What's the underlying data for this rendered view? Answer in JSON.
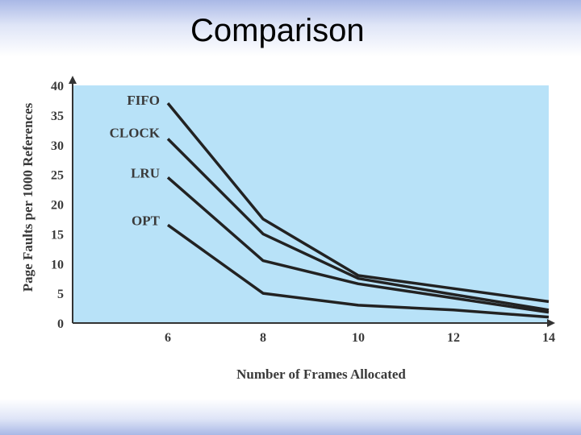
{
  "slide": {
    "title": "Comparison"
  },
  "chart_data": {
    "type": "line",
    "title": "",
    "xlabel": "Number of Frames Allocated",
    "ylabel": "Page Faults per 1000 References",
    "x": [
      6,
      8,
      10,
      12,
      14
    ],
    "x_ticks": [
      "6",
      "8",
      "10",
      "12",
      "14"
    ],
    "y_ticks": [
      "0",
      "5",
      "10",
      "15",
      "20",
      "25",
      "30",
      "35",
      "40"
    ],
    "xlim": [
      4,
      14
    ],
    "ylim": [
      0,
      40
    ],
    "grid": false,
    "legend": "none",
    "series": [
      {
        "name": "FIFO",
        "values": [
          37,
          17.5,
          8,
          5.8,
          3.6
        ]
      },
      {
        "name": "CLOCK",
        "values": [
          31,
          15,
          7.5,
          4.8,
          2.2
        ]
      },
      {
        "name": "LRU",
        "values": [
          24.5,
          10.5,
          6.6,
          4.2,
          1.8
        ]
      },
      {
        "name": "OPT",
        "values": [
          16.5,
          5,
          3,
          2.2,
          1
        ]
      }
    ],
    "colors": {
      "plot_background": "#b8e2f8",
      "line": "#222222",
      "axis": "#333333"
    }
  }
}
